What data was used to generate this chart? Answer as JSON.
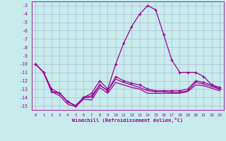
{
  "xlabel": "Windchill (Refroidissement éolien,°C)",
  "background_color": "#c8ecec",
  "grid_color": "#b0b8d8",
  "line_color": "#990099",
  "hours": [
    0,
    1,
    2,
    3,
    4,
    5,
    6,
    7,
    8,
    9,
    10,
    11,
    12,
    13,
    14,
    15,
    16,
    17,
    18,
    19,
    20,
    21,
    22,
    23
  ],
  "line_high": [
    -10,
    -11,
    -13,
    -13.5,
    -14.5,
    -15,
    -14,
    -13.5,
    -12,
    -13,
    -10,
    -7.5,
    -5.5,
    -4,
    -3,
    -3.5,
    -6.5,
    -9.5,
    -11,
    -11,
    -11,
    -11.5,
    -12.5,
    -13
  ],
  "line_mid1": [
    -10,
    -11,
    -13.3,
    -13.5,
    -14.5,
    -15.0,
    -14.0,
    -13.8,
    -12.5,
    -13.2,
    -11.5,
    -12.0,
    -12.3,
    -12.5,
    -13.0,
    -13.2,
    -13.2,
    -13.2,
    -13.2,
    -13.0,
    -12.0,
    -12.2,
    -12.5,
    -12.8
  ],
  "line_mid2": [
    -10,
    -11,
    -13.3,
    -13.5,
    -14.5,
    -15.0,
    -14.0,
    -14.0,
    -12.5,
    -13.2,
    -11.8,
    -12.2,
    -12.5,
    -12.8,
    -13.2,
    -13.3,
    -13.3,
    -13.4,
    -13.4,
    -13.2,
    -12.2,
    -12.4,
    -12.7,
    -13.0
  ],
  "line_low": [
    -10,
    -11,
    -13.3,
    -13.8,
    -14.8,
    -15.1,
    -14.2,
    -14.3,
    -12.8,
    -13.5,
    -12.2,
    -12.5,
    -12.8,
    -13.0,
    -13.5,
    -13.5,
    -13.5,
    -13.5,
    -13.5,
    -13.3,
    -12.5,
    -12.6,
    -12.9,
    -13.2
  ],
  "ylim": [
    -15.5,
    -2.5
  ],
  "yticks": [
    -15,
    -14,
    -13,
    -12,
    -11,
    -10,
    -9,
    -8,
    -7,
    -6,
    -5,
    -4,
    -3
  ],
  "xlim": [
    -0.5,
    23.5
  ]
}
